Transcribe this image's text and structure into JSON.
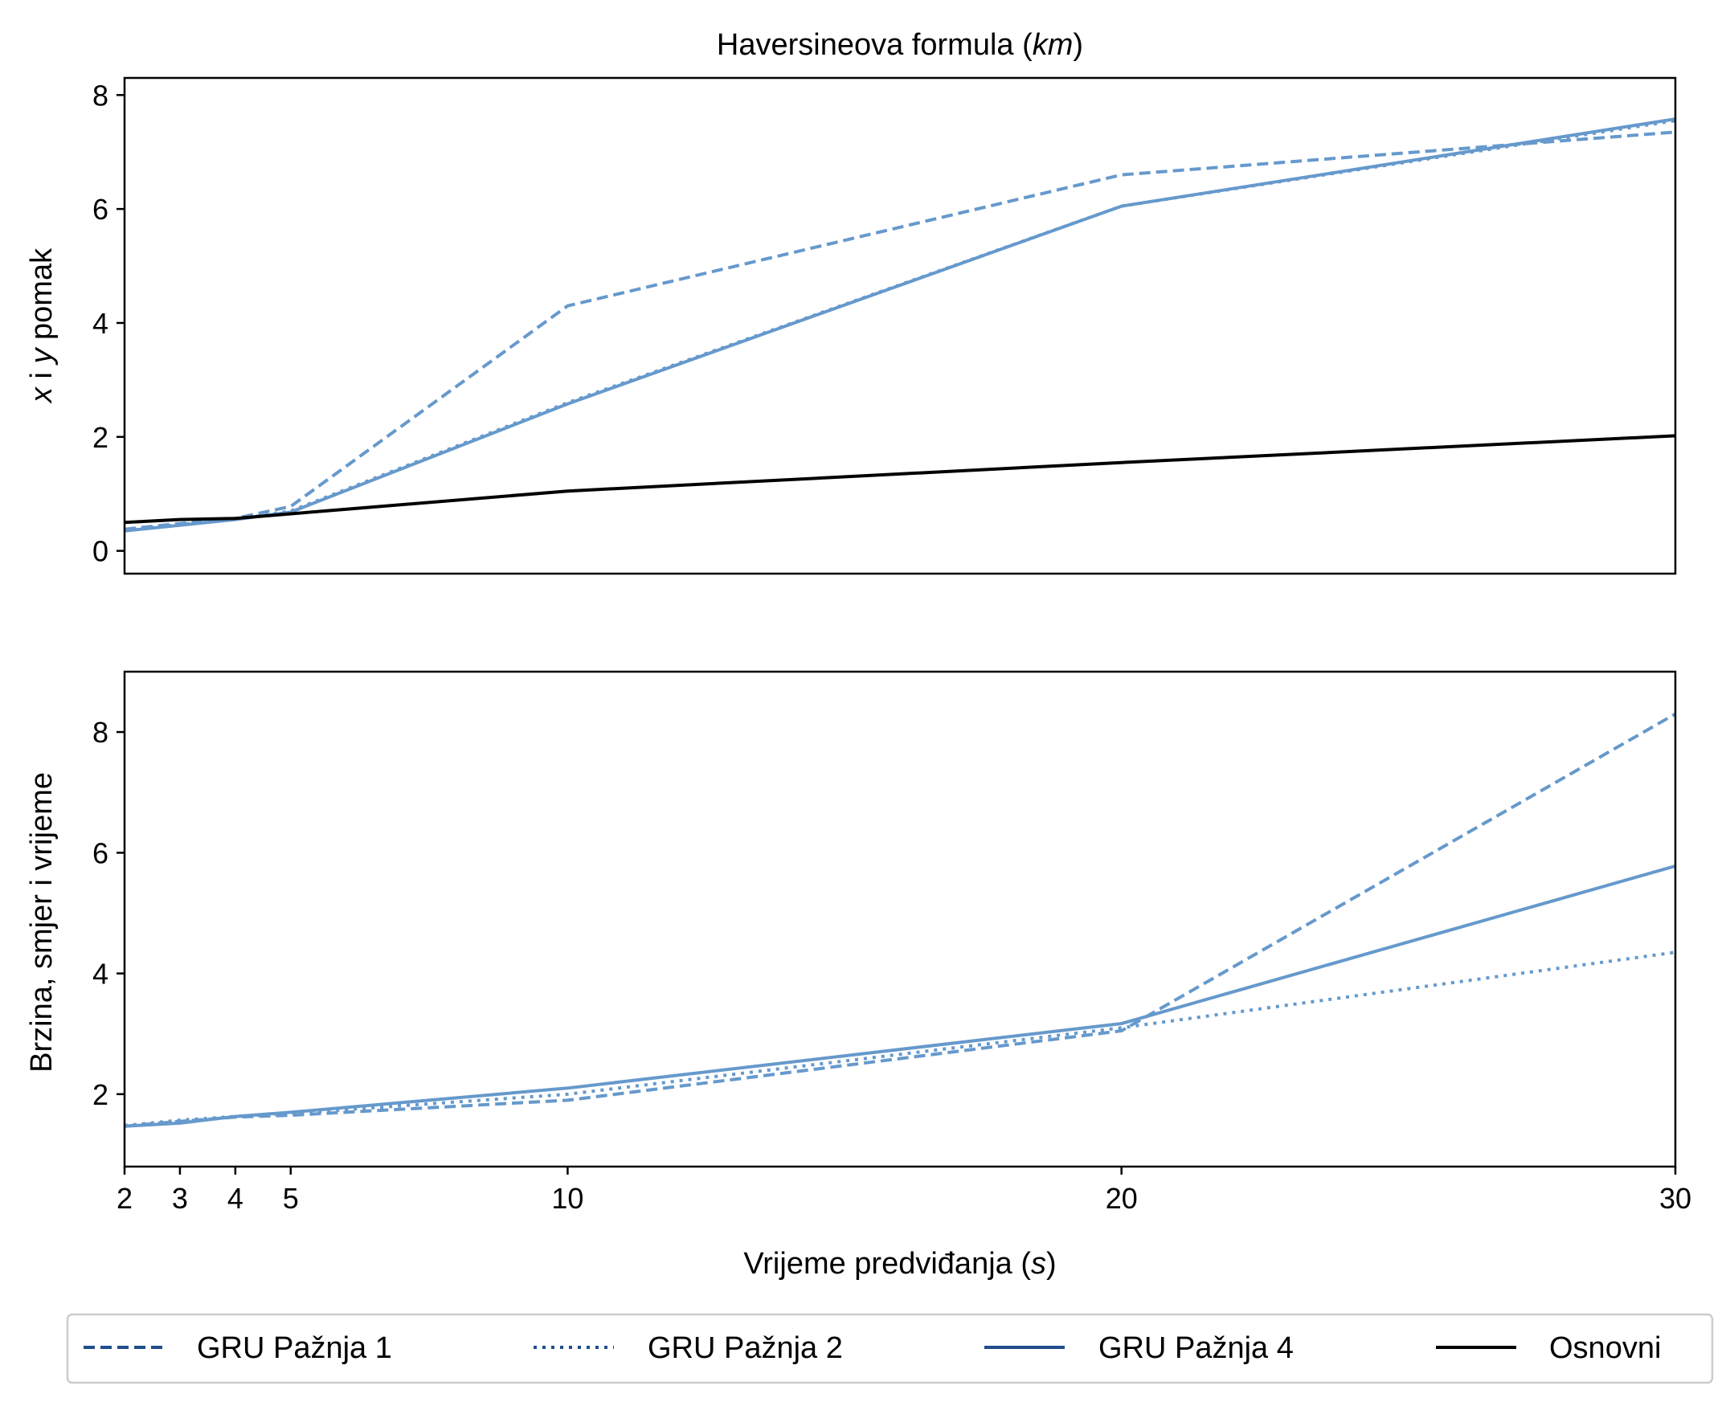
{
  "figure": {
    "title_prefix": "Haversineova formula (",
    "title_unit": "km",
    "title_suffix": ")",
    "xlabel_prefix": "Vrijeme predviđanja (",
    "xlabel_unit": "s",
    "xlabel_suffix": ")"
  },
  "colors": {
    "gru": "#6699cc",
    "gru_legend": "#1f4e8c",
    "baseline": "#000000"
  },
  "chart_data": [
    {
      "type": "line",
      "panel": "top",
      "title": "Haversineova formula (km)",
      "ylabel_parts": [
        "x",
        " i ",
        "y",
        " pomak"
      ],
      "x": [
        2,
        3,
        4,
        5,
        10,
        20,
        30
      ],
      "xlim": [
        2,
        30
      ],
      "ylim": [
        -0.4,
        8.3
      ],
      "yticks": [
        0,
        2,
        4,
        6,
        8
      ],
      "series": [
        {
          "name": "GRU Pažnja 1",
          "style": "dashed",
          "color": "#6699cc",
          "values": [
            0.38,
            0.48,
            0.57,
            0.78,
            4.3,
            6.6,
            7.35
          ]
        },
        {
          "name": "GRU Pažnja 2",
          "style": "dotted",
          "color": "#6699cc",
          "values": [
            0.36,
            0.46,
            0.55,
            0.7,
            2.6,
            6.05,
            7.55
          ]
        },
        {
          "name": "GRU Pažnja 4",
          "style": "solid",
          "color": "#6699cc",
          "values": [
            0.35,
            0.45,
            0.55,
            0.68,
            2.58,
            6.05,
            7.58
          ]
        },
        {
          "name": "Osnovni",
          "style": "solid",
          "color": "#000000",
          "values": [
            0.5,
            0.55,
            0.57,
            0.65,
            1.05,
            1.55,
            2.02
          ]
        }
      ]
    },
    {
      "type": "line",
      "panel": "bottom",
      "ylabel": "Brzina, smjer i vrijeme",
      "xlabel": "Vrijeme predviđanja (s)",
      "x": [
        2,
        3,
        4,
        5,
        10,
        20,
        30
      ],
      "xlim": [
        2,
        30
      ],
      "ylim": [
        0.8,
        9.0
      ],
      "yticks": [
        2,
        4,
        6,
        8
      ],
      "xticks": [
        "2",
        "3",
        "4",
        "5",
        "10",
        "20",
        "30"
      ],
      "series": [
        {
          "name": "GRU Pažnja 1",
          "style": "dashed",
          "color": "#6699cc",
          "values": [
            1.47,
            1.55,
            1.62,
            1.65,
            1.9,
            3.05,
            8.3
          ]
        },
        {
          "name": "GRU Pažnja 2",
          "style": "dotted",
          "color": "#6699cc",
          "values": [
            1.48,
            1.57,
            1.63,
            1.68,
            2.0,
            3.1,
            4.35
          ]
        },
        {
          "name": "GRU Pažnja 4",
          "style": "solid",
          "color": "#6699cc",
          "values": [
            1.47,
            1.52,
            1.63,
            1.7,
            2.1,
            3.17,
            5.78
          ]
        }
      ]
    }
  ],
  "legend": {
    "placement": "bottom-center",
    "items": [
      {
        "label": "GRU Pažnja 1",
        "style": "dashed"
      },
      {
        "label": "GRU Pažnja 2",
        "style": "dotted"
      },
      {
        "label": "GRU Pažnja 4",
        "style": "solid"
      },
      {
        "label": "Osnovni",
        "style": "solid-black"
      }
    ]
  }
}
